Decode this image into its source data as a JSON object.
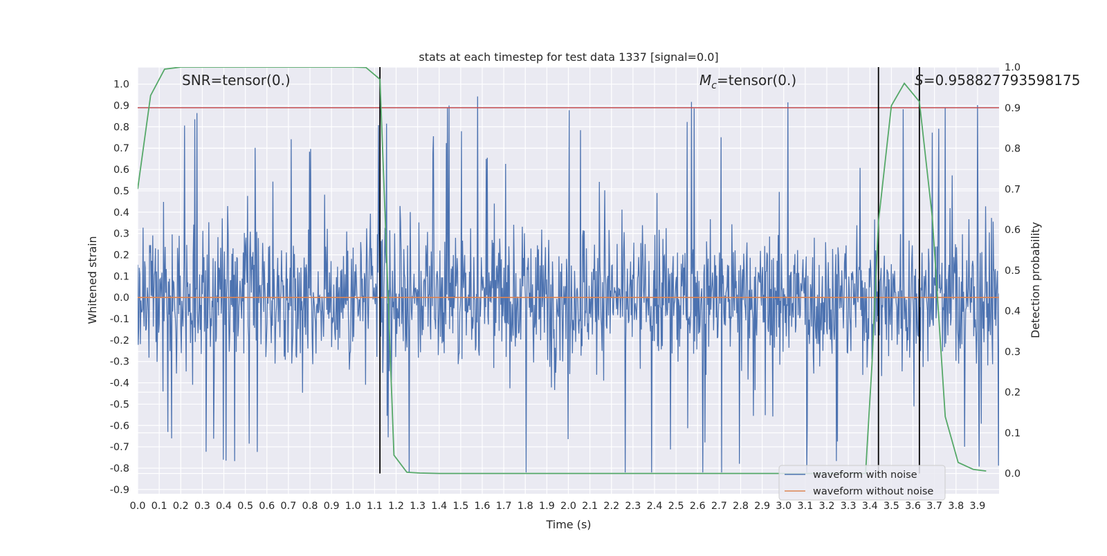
{
  "chart_data": {
    "type": "line",
    "title": "stats at each timestep for test data 1337 [signal=0.0]",
    "xlabel": "Time (s)",
    "ylabel": "Whitened strain",
    "y2label": "Detection probability",
    "xlim": [
      0.0,
      4.0
    ],
    "ylim": [
      -0.92,
      1.08
    ],
    "y2lim": [
      -0.05,
      1.0
    ],
    "grid": true,
    "x_ticks": [
      "0.0",
      "0.1",
      "0.2",
      "0.3",
      "0.4",
      "0.5",
      "0.6",
      "0.7",
      "0.8",
      "0.9",
      "1.0",
      "1.1",
      "1.2",
      "1.3",
      "1.4",
      "1.5",
      "1.6",
      "1.7",
      "1.8",
      "1.9",
      "2.0",
      "2.1",
      "2.2",
      "2.3",
      "2.4",
      "2.5",
      "2.6",
      "2.7",
      "2.8",
      "2.9",
      "3.0",
      "3.1",
      "3.2",
      "3.3",
      "3.4",
      "3.5",
      "3.6",
      "3.7",
      "3.8",
      "3.9"
    ],
    "y_ticks": [
      "1.0",
      "0.9",
      "0.8",
      "0.7",
      "0.6",
      "0.5",
      "0.4",
      "0.3",
      "0.2",
      "0.1",
      "0.0",
      "-0.1",
      "-0.2",
      "-0.3",
      "-0.4",
      "-0.5",
      "-0.6",
      "-0.7",
      "-0.8",
      "-0.9"
    ],
    "y2_ticks": [
      "1.0",
      "0.9",
      "0.8",
      "0.7",
      "0.6",
      "0.5",
      "0.4",
      "0.3",
      "0.2",
      "0.1",
      "0.0"
    ],
    "annotations": {
      "snr": "SNR=tensor(0.)",
      "mc_symbol": "M",
      "mc_sub": "c",
      "mc_value": "=tensor(0.)",
      "s_symbol": "S",
      "s_value": "=0.958827793598175"
    },
    "legend": {
      "placement": "lower-right",
      "entries": [
        "waveform with noise",
        "waveform without noise"
      ]
    },
    "series": [
      {
        "name": "waveform with noise",
        "color": "#4c72b0",
        "description": "dense whitened noise, roughly within -0.82 to 1.0",
        "amplitude_range": [
          -0.82,
          1.0
        ],
        "sample_count": 1600
      },
      {
        "name": "waveform without noise",
        "color": "#dd8452",
        "x": [
          0.0,
          4.0
        ],
        "y": [
          0.0,
          0.0
        ]
      },
      {
        "color": "#55a868",
        "axis": "right",
        "x": [
          0.0,
          0.06,
          0.125,
          0.2,
          0.3,
          0.5,
          1.0,
          1.06,
          1.125,
          1.15,
          1.19,
          1.25,
          1.31,
          1.4,
          1.6,
          2.0,
          3.0,
          3.35,
          3.38,
          3.41,
          3.44,
          3.5,
          3.56,
          3.63,
          3.69,
          3.75,
          3.81,
          3.88,
          3.94
        ],
        "y": [
          0.7,
          0.93,
          0.995,
          1.0,
          1.0,
          1.0,
          1.0,
          0.999,
          0.97,
          0.62,
          0.045,
          0.003,
          0.001,
          0.0,
          0.0,
          0.0,
          0.0,
          0.0,
          0.0,
          0.27,
          0.62,
          0.905,
          0.96,
          0.915,
          0.63,
          0.14,
          0.027,
          0.01,
          0.006
        ]
      },
      {
        "color": "#c44e52",
        "axis": "right",
        "x": [
          0.0,
          4.0
        ],
        "y": [
          0.9,
          0.9
        ]
      }
    ],
    "vertical_markers": {
      "color": "#000000",
      "x": [
        1.125,
        3.44,
        3.63
      ]
    }
  }
}
